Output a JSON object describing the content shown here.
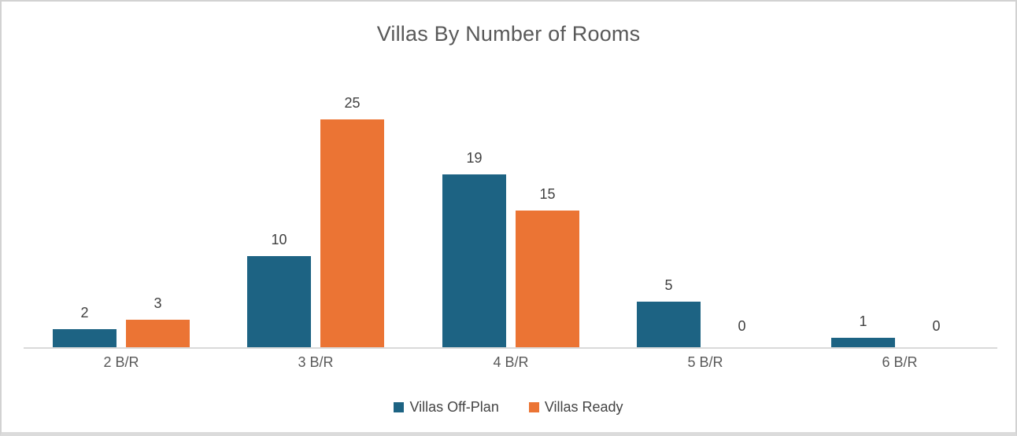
{
  "chart_data": {
    "type": "bar",
    "title": "Villas By Number of Rooms",
    "xlabel": "",
    "ylabel": "",
    "categories": [
      "2 B/R",
      "3 B/R",
      "4 B/R",
      "5 B/R",
      "6 B/R"
    ],
    "series": [
      {
        "name": "Villas Off-Plan",
        "color": "#1d6383",
        "values": [
          2,
          10,
          19,
          5,
          1
        ]
      },
      {
        "name": "Villas Ready",
        "color": "#eb7434",
        "values": [
          3,
          25,
          15,
          0,
          0
        ]
      }
    ],
    "ylim": [
      0,
      30
    ],
    "grid": false,
    "data_labels": true,
    "legend_position": "bottom"
  },
  "style": {
    "axis_line_color": "#d9d9d9",
    "title_color": "#595959",
    "category_label_color": "#595959",
    "data_label_color": "#404040",
    "legend_text_color": "#444444",
    "card_background": "#ffffff",
    "card_border_color": "#d2d2d2"
  }
}
